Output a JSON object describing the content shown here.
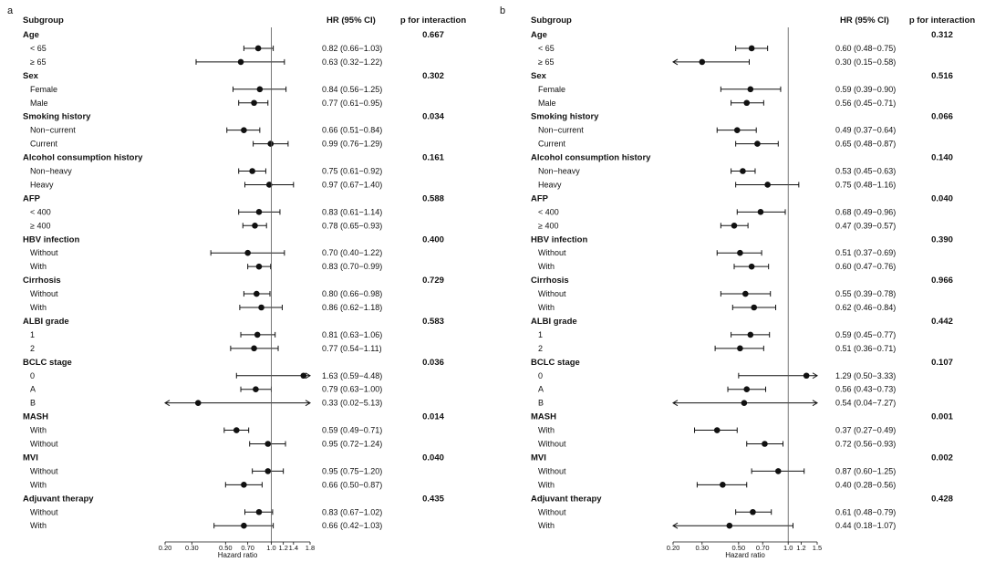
{
  "header": {
    "subgroup": "Subgroup",
    "hr": "HR (95% CI)",
    "p": "p for interaction"
  },
  "axis_title": "Hazard ratio",
  "colors": {
    "ink": "#111111",
    "reference": "#555555"
  },
  "chart_data": [
    {
      "type": "forest",
      "panel": "a",
      "xscale": "log",
      "xlim": [
        0.2,
        1.8
      ],
      "reference": 1.0,
      "ticks": [
        "0.20",
        "0.30",
        "0.50",
        "0.70",
        "1.0",
        "1.2",
        "1.4",
        "1.8"
      ],
      "tick_values": [
        0.2,
        0.3,
        0.5,
        0.7,
        1.0,
        1.2,
        1.4,
        1.8
      ],
      "xlabel": "Hazard ratio",
      "groups": [
        {
          "name": "Age",
          "p": "0.667",
          "rows": [
            {
              "label": "< 65",
              "hr": 0.82,
              "lo": 0.66,
              "hi": 1.03,
              "text": "0.82 (0.66−1.03)"
            },
            {
              "label": "≥ 65",
              "hr": 0.63,
              "lo": 0.32,
              "hi": 1.22,
              "text": "0.63 (0.32−1.22)"
            }
          ]
        },
        {
          "name": "Sex",
          "p": "0.302",
          "rows": [
            {
              "label": "Female",
              "hr": 0.84,
              "lo": 0.56,
              "hi": 1.25,
              "text": "0.84 (0.56−1.25)"
            },
            {
              "label": "Male",
              "hr": 0.77,
              "lo": 0.61,
              "hi": 0.95,
              "text": "0.77 (0.61−0.95)"
            }
          ]
        },
        {
          "name": "Smoking history",
          "p": "0.034",
          "rows": [
            {
              "label": "Non−current",
              "hr": 0.66,
              "lo": 0.51,
              "hi": 0.84,
              "text": "0.66 (0.51−0.84)"
            },
            {
              "label": "Current",
              "hr": 0.99,
              "lo": 0.76,
              "hi": 1.29,
              "text": "0.99 (0.76−1.29)"
            }
          ]
        },
        {
          "name": "Alcohol consumption history",
          "p": "0.161",
          "rows": [
            {
              "label": "Non−heavy",
              "hr": 0.75,
              "lo": 0.61,
              "hi": 0.92,
              "text": "0.75 (0.61−0.92)"
            },
            {
              "label": "Heavy",
              "hr": 0.97,
              "lo": 0.67,
              "hi": 1.4,
              "text": "0.97 (0.67−1.40)"
            }
          ]
        },
        {
          "name": "AFP",
          "p": "0.588",
          "rows": [
            {
              "label": "< 400",
              "hr": 0.83,
              "lo": 0.61,
              "hi": 1.14,
              "text": "0.83 (0.61−1.14)"
            },
            {
              "label": "≥ 400",
              "hr": 0.78,
              "lo": 0.65,
              "hi": 0.93,
              "text": "0.78 (0.65−0.93)"
            }
          ]
        },
        {
          "name": "HBV infection",
          "p": "0.400",
          "rows": [
            {
              "label": "Without",
              "hr": 0.7,
              "lo": 0.4,
              "hi": 1.22,
              "text": "0.70 (0.40−1.22)"
            },
            {
              "label": "With",
              "hr": 0.83,
              "lo": 0.7,
              "hi": 0.99,
              "text": "0.83 (0.70−0.99)"
            }
          ]
        },
        {
          "name": "Cirrhosis",
          "p": "0.729",
          "rows": [
            {
              "label": "Without",
              "hr": 0.8,
              "lo": 0.66,
              "hi": 0.98,
              "text": "0.80 (0.66−0.98)"
            },
            {
              "label": "With",
              "hr": 0.86,
              "lo": 0.62,
              "hi": 1.18,
              "text": "0.86 (0.62−1.18)"
            }
          ]
        },
        {
          "name": "ALBI grade",
          "p": "0.583",
          "rows": [
            {
              "label": "1",
              "hr": 0.81,
              "lo": 0.63,
              "hi": 1.06,
              "text": "0.81 (0.63−1.06)"
            },
            {
              "label": "2",
              "hr": 0.77,
              "lo": 0.54,
              "hi": 1.11,
              "text": "0.77 (0.54−1.11)"
            }
          ]
        },
        {
          "name": "BCLC stage",
          "p": "0.036",
          "rows": [
            {
              "label": "0",
              "hr": 1.63,
              "lo": 0.59,
              "hi": 4.48,
              "text": "1.63 (0.59−4.48)"
            },
            {
              "label": "A",
              "hr": 0.79,
              "lo": 0.63,
              "hi": 1.0,
              "text": "0.79 (0.63−1.00)"
            },
            {
              "label": "B",
              "hr": 0.33,
              "lo": 0.02,
              "hi": 5.13,
              "text": "0.33 (0.02−5.13)"
            }
          ]
        },
        {
          "name": "MASH",
          "p": "0.014",
          "rows": [
            {
              "label": "With",
              "hr": 0.59,
              "lo": 0.49,
              "hi": 0.71,
              "text": "0.59 (0.49−0.71)"
            },
            {
              "label": "Without",
              "hr": 0.95,
              "lo": 0.72,
              "hi": 1.24,
              "text": "0.95 (0.72−1.24)"
            }
          ]
        },
        {
          "name": "MVI",
          "p": "0.040",
          "rows": [
            {
              "label": "Without",
              "hr": 0.95,
              "lo": 0.75,
              "hi": 1.2,
              "text": "0.95 (0.75−1.20)"
            },
            {
              "label": "With",
              "hr": 0.66,
              "lo": 0.5,
              "hi": 0.87,
              "text": "0.66 (0.50−0.87)"
            }
          ]
        },
        {
          "name": "Adjuvant therapy",
          "p": "0.435",
          "rows": [
            {
              "label": "Without",
              "hr": 0.83,
              "lo": 0.67,
              "hi": 1.02,
              "text": "0.83 (0.67−1.02)"
            },
            {
              "label": "With",
              "hr": 0.66,
              "lo": 0.42,
              "hi": 1.03,
              "text": "0.66 (0.42−1.03)"
            }
          ]
        }
      ]
    },
    {
      "type": "forest",
      "panel": "b",
      "xscale": "log",
      "xlim": [
        0.2,
        1.5
      ],
      "reference": 1.0,
      "ticks": [
        "0.20",
        "0.30",
        "0.50",
        "0.70",
        "1.0",
        "1.2",
        "1.5"
      ],
      "tick_values": [
        0.2,
        0.3,
        0.5,
        0.7,
        1.0,
        1.2,
        1.5
      ],
      "xlabel": "Hazard ratio",
      "groups": [
        {
          "name": "Age",
          "p": "0.312",
          "rows": [
            {
              "label": "< 65",
              "hr": 0.6,
              "lo": 0.48,
              "hi": 0.75,
              "text": "0.60 (0.48−0.75)"
            },
            {
              "label": "≥ 65",
              "hr": 0.3,
              "lo": 0.15,
              "hi": 0.58,
              "text": "0.30 (0.15−0.58)"
            }
          ]
        },
        {
          "name": "Sex",
          "p": "0.516",
          "rows": [
            {
              "label": "Female",
              "hr": 0.59,
              "lo": 0.39,
              "hi": 0.9,
              "text": "0.59 (0.39−0.90)"
            },
            {
              "label": "Male",
              "hr": 0.56,
              "lo": 0.45,
              "hi": 0.71,
              "text": "0.56 (0.45−0.71)"
            }
          ]
        },
        {
          "name": "Smoking history",
          "p": "0.066",
          "rows": [
            {
              "label": "Non−current",
              "hr": 0.49,
              "lo": 0.37,
              "hi": 0.64,
              "text": "0.49 (0.37−0.64)"
            },
            {
              "label": "Current",
              "hr": 0.65,
              "lo": 0.48,
              "hi": 0.87,
              "text": "0.65 (0.48−0.87)"
            }
          ]
        },
        {
          "name": "Alcohol consumption history",
          "p": "0.140",
          "rows": [
            {
              "label": "Non−heavy",
              "hr": 0.53,
              "lo": 0.45,
              "hi": 0.63,
              "text": "0.53 (0.45−0.63)"
            },
            {
              "label": "Heavy",
              "hr": 0.75,
              "lo": 0.48,
              "hi": 1.16,
              "text": "0.75 (0.48−1.16)"
            }
          ]
        },
        {
          "name": "AFP",
          "p": "0.040",
          "rows": [
            {
              "label": "< 400",
              "hr": 0.68,
              "lo": 0.49,
              "hi": 0.96,
              "text": "0.68 (0.49−0.96)"
            },
            {
              "label": "≥ 400",
              "hr": 0.47,
              "lo": 0.39,
              "hi": 0.57,
              "text": "0.47 (0.39−0.57)"
            }
          ]
        },
        {
          "name": "HBV infection",
          "p": "0.390",
          "rows": [
            {
              "label": "Without",
              "hr": 0.51,
              "lo": 0.37,
              "hi": 0.69,
              "text": "0.51 (0.37−0.69)"
            },
            {
              "label": "With",
              "hr": 0.6,
              "lo": 0.47,
              "hi": 0.76,
              "text": "0.60 (0.47−0.76)"
            }
          ]
        },
        {
          "name": "Cirrhosis",
          "p": "0.966",
          "rows": [
            {
              "label": "Without",
              "hr": 0.55,
              "lo": 0.39,
              "hi": 0.78,
              "text": "0.55 (0.39−0.78)"
            },
            {
              "label": "With",
              "hr": 0.62,
              "lo": 0.46,
              "hi": 0.84,
              "text": "0.62 (0.46−0.84)"
            }
          ]
        },
        {
          "name": "ALBI grade",
          "p": "0.442",
          "rows": [
            {
              "label": "1",
              "hr": 0.59,
              "lo": 0.45,
              "hi": 0.77,
              "text": "0.59 (0.45−0.77)"
            },
            {
              "label": "2",
              "hr": 0.51,
              "lo": 0.36,
              "hi": 0.71,
              "text": "0.51 (0.36−0.71)"
            }
          ]
        },
        {
          "name": "BCLC stage",
          "p": "0.107",
          "rows": [
            {
              "label": "0",
              "hr": 1.29,
              "lo": 0.5,
              "hi": 3.33,
              "text": "1.29 (0.50−3.33)"
            },
            {
              "label": "A",
              "hr": 0.56,
              "lo": 0.43,
              "hi": 0.73,
              "text": "0.56 (0.43−0.73)"
            },
            {
              "label": "B",
              "hr": 0.54,
              "lo": 0.04,
              "hi": 7.27,
              "text": "0.54 (0.04−7.27)"
            }
          ]
        },
        {
          "name": "MASH",
          "p": "0.001",
          "rows": [
            {
              "label": "With",
              "hr": 0.37,
              "lo": 0.27,
              "hi": 0.49,
              "text": "0.37 (0.27−0.49)"
            },
            {
              "label": "Without",
              "hr": 0.72,
              "lo": 0.56,
              "hi": 0.93,
              "text": "0.72 (0.56−0.93)"
            }
          ]
        },
        {
          "name": "MVI",
          "p": "0.002",
          "rows": [
            {
              "label": "Without",
              "hr": 0.87,
              "lo": 0.6,
              "hi": 1.25,
              "text": "0.87 (0.60−1.25)"
            },
            {
              "label": "With",
              "hr": 0.4,
              "lo": 0.28,
              "hi": 0.56,
              "text": "0.40 (0.28−0.56)"
            }
          ]
        },
        {
          "name": "Adjuvant therapy",
          "p": "0.428",
          "rows": [
            {
              "label": "Without",
              "hr": 0.61,
              "lo": 0.48,
              "hi": 0.79,
              "text": "0.61 (0.48−0.79)"
            },
            {
              "label": "With",
              "hr": 0.44,
              "lo": 0.18,
              "hi": 1.07,
              "text": "0.44 (0.18−1.07)"
            }
          ]
        }
      ]
    }
  ]
}
